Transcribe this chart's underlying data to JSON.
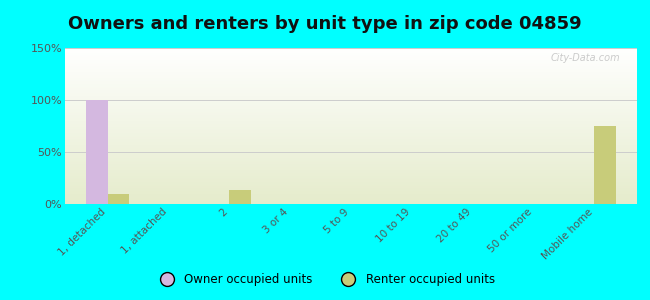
{
  "title": "Owners and renters by unit type in zip code 04859",
  "categories": [
    "1, detached",
    "1, attached",
    "2",
    "3 or 4",
    "5 to 9",
    "10 to 19",
    "20 to 49",
    "50 or more",
    "Mobile home"
  ],
  "owner_values": [
    100,
    0,
    0,
    0,
    0,
    0,
    0,
    0,
    0
  ],
  "renter_values": [
    10,
    0,
    13,
    0,
    0,
    0,
    0,
    0,
    75
  ],
  "owner_color": "#d4b8e0",
  "renter_color": "#c8cc7a",
  "ylim": [
    0,
    150
  ],
  "yticks": [
    0,
    50,
    100,
    150
  ],
  "ytick_labels": [
    "0%",
    "50%",
    "100%",
    "150%"
  ],
  "bg_color": "#00ffff",
  "title_fontsize": 13,
  "bar_width": 0.35,
  "legend_owner": "Owner occupied units",
  "legend_renter": "Renter occupied units",
  "watermark": "City-Data.com"
}
